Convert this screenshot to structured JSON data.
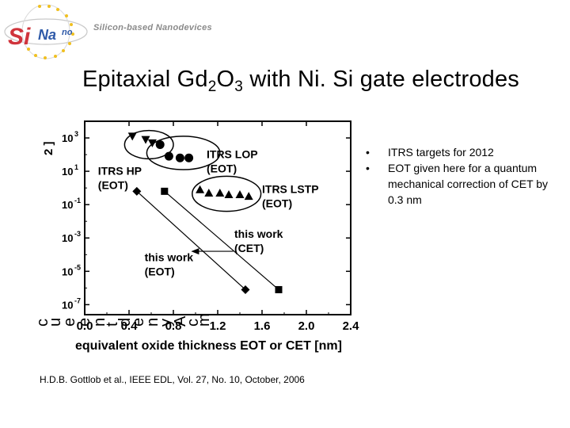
{
  "logo": {
    "brand_si": "Si",
    "brand_na": "Na",
    "brand_no": "no",
    "tagline": "Silicon-based Nanodevices"
  },
  "slide": {
    "title_pre": "Epitaxial Gd",
    "title_sub1": "2",
    "title_mid": "O",
    "title_sub2": "3",
    "title_post": " with Ni. Si gate electrodes",
    "bullets": [
      "ITRS targets for 2012",
      "EOT given here for a quantum mechanical correction of CET by 0.3 nm"
    ],
    "reference": "H.D.B. Gottlob et al., IEEE EDL, Vol. 27, No. 10, October, 2006"
  },
  "chart_data": {
    "type": "scatter",
    "xlabel": "equivalent oxide thickness EOT or CET [nm]",
    "ylabel_visible": "2 ]",
    "ylabel_overlap_glyphs": [
      "c",
      "u",
      "e",
      "e",
      "n",
      "t",
      "d",
      "e",
      "n",
      "y",
      "A",
      "c",
      "m"
    ],
    "x_ticks": [
      "0.0",
      "0.4",
      "0.8",
      "1.2",
      "1.6",
      "2.0",
      "2.4"
    ],
    "y_ticks": [
      {
        "base": "10",
        "exp": "3"
      },
      {
        "base": "10",
        "exp": "1"
      },
      {
        "base": "10",
        "exp": "-1"
      },
      {
        "base": "10",
        "exp": "-3"
      },
      {
        "base": "10",
        "exp": "-5"
      },
      {
        "base": "10",
        "exp": "-7"
      }
    ],
    "xlim": [
      0.0,
      2.4
    ],
    "ylim_log10": [
      -7.6,
      4.0
    ],
    "log_y": true,
    "series": [
      {
        "marker": "triangle-down",
        "x": [
          0.43,
          0.55,
          0.61
        ],
        "log10_y": [
          3.1,
          2.9,
          2.7
        ]
      },
      {
        "marker": "circle",
        "x": [
          0.68,
          0.76,
          0.86,
          0.94
        ],
        "log10_y": [
          2.6,
          1.9,
          1.8,
          1.8
        ]
      },
      {
        "marker": "triangle-up",
        "x": [
          1.04,
          1.12,
          1.22,
          1.3,
          1.4,
          1.48
        ],
        "log10_y": [
          -0.1,
          -0.3,
          -0.3,
          -0.4,
          -0.4,
          -0.5
        ]
      },
      {
        "marker": "diamond",
        "x": [
          0.47,
          1.45
        ],
        "log10_y": [
          -0.2,
          -6.1
        ]
      },
      {
        "marker": "square",
        "x": [
          0.72,
          1.75
        ],
        "log10_y": [
          -0.2,
          -6.1
        ]
      }
    ],
    "fit_lines": [
      {
        "x": [
          0.47,
          1.45
        ],
        "log10_y": [
          -0.2,
          -6.1
        ]
      },
      {
        "x": [
          0.72,
          1.75
        ],
        "log10_y": [
          -0.2,
          -6.1
        ]
      }
    ],
    "ellipses": [
      {
        "cx": 0.58,
        "log10_cy": 2.6,
        "rx": 0.22,
        "ry_log": 0.85
      },
      {
        "cx": 0.89,
        "log10_cy": 2.1,
        "rx": 0.33,
        "ry_log": 1.0
      },
      {
        "cx": 1.28,
        "log10_cy": -0.35,
        "rx": 0.31,
        "ry_log": 1.05
      }
    ],
    "annotations": [
      {
        "lines": [
          "ITRS HP",
          "(EOT)"
        ],
        "x": 0.12,
        "log10_y": 0.8
      },
      {
        "lines": [
          "ITRS LOP",
          "(EOT)"
        ],
        "x": 1.1,
        "log10_y": 1.8
      },
      {
        "lines": [
          "ITRS LSTP",
          "(EOT)"
        ],
        "x": 1.6,
        "log10_y": -0.3
      },
      {
        "lines": [
          "this work",
          "(CET)"
        ],
        "x": 1.35,
        "log10_y": -3.0
      },
      {
        "lines": [
          "this work",
          "(EOT)"
        ],
        "x": 0.54,
        "log10_y": -4.4
      }
    ],
    "arrow": {
      "from_x": 1.34,
      "from_log10_y": -3.8,
      "to_x": 0.96,
      "to_log10_y": -3.8
    },
    "grid": false,
    "legend": "none"
  },
  "colors": {
    "logo_red": "#d0343c",
    "logo_blue": "#2f5aa8",
    "logo_star": "#f0c020",
    "text": "#000000"
  }
}
